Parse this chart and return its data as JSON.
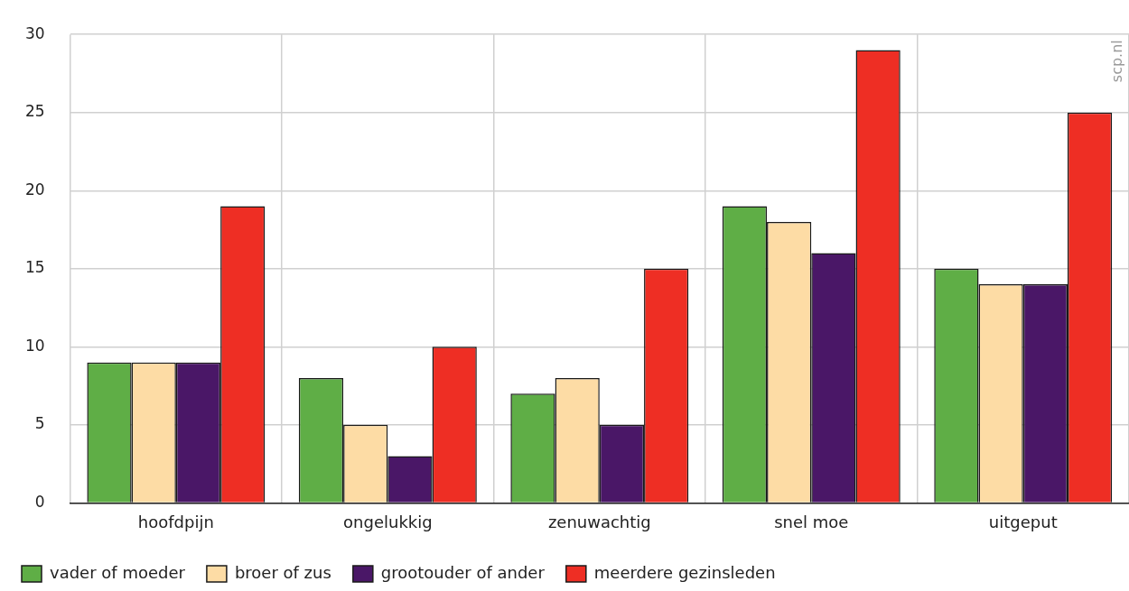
{
  "chart_data": {
    "type": "bar",
    "categories": [
      "hoofdpijn",
      "ongelukkig",
      "zenuwachtig",
      "snel moe",
      "uitgeput"
    ],
    "series": [
      {
        "name": "vader of moeder",
        "color": "#5fae46",
        "values": [
          9,
          8,
          7,
          19,
          15
        ]
      },
      {
        "name": "broer of zus",
        "color": "#fddca5",
        "values": [
          9,
          5,
          8,
          18,
          14
        ]
      },
      {
        "name": "grootouder of ander",
        "color": "#4a1767",
        "values": [
          9,
          3,
          5,
          16,
          14
        ]
      },
      {
        "name": "meerdere gezinsleden",
        "color": "#ee2e24",
        "values": [
          19,
          10,
          15,
          29,
          25
        ]
      }
    ],
    "ylim": [
      0,
      30
    ],
    "yticks": [
      0,
      5,
      10,
      15,
      20,
      25,
      30
    ],
    "grid": true,
    "legend": "bottom",
    "annotations": [
      "scp.nl"
    ]
  }
}
